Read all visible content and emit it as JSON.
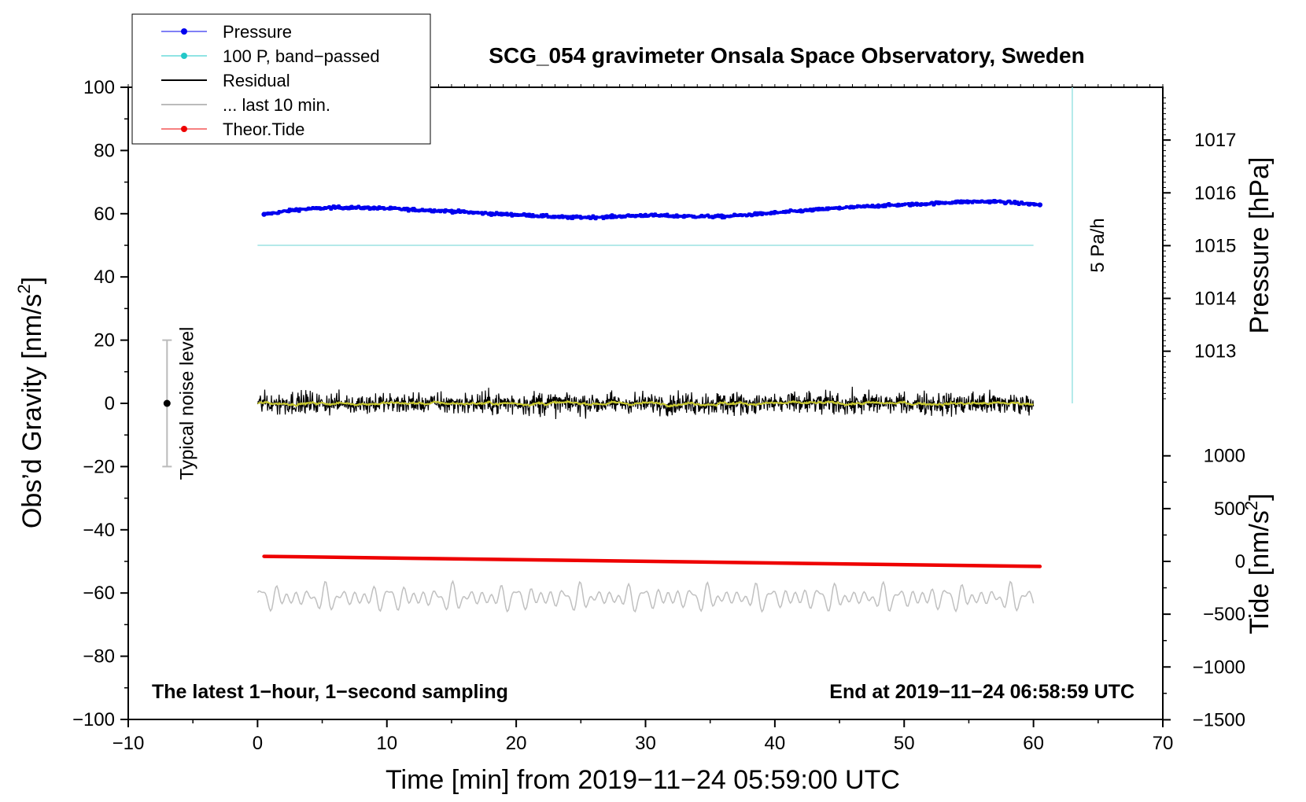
{
  "chart_data": {
    "type": "line",
    "title": "SCG_054 gravimeter Onsala Space Observatory, Sweden",
    "xlabel": "Time [min] from 2019−11−24 05:59:00 UTC",
    "ylabel_left_main": "Obs’d Gravity [nm/s",
    "ylabel_left_sup": "2",
    "ylabel_left_end": "]",
    "ylabel_right_pressure": "Pressure [hPa]",
    "ylabel_right_tide_main": "Tide [nm/s",
    "ylabel_right_tide_sup": "2",
    "ylabel_right_tide_end": "]",
    "xlim": [
      -10,
      70
    ],
    "ylim": [
      -100,
      100
    ],
    "x_ticks": [
      -10,
      0,
      10,
      20,
      30,
      40,
      50,
      60,
      70
    ],
    "x_tick_labels": [
      "−10",
      "0",
      "10",
      "20",
      "30",
      "40",
      "50",
      "60",
      "70"
    ],
    "y_ticks": [
      100,
      80,
      60,
      40,
      20,
      0,
      -20,
      -40,
      -60,
      -80,
      -100
    ],
    "y_tick_labels": [
      "100",
      "80",
      "60",
      "40",
      "20",
      "0",
      "−20",
      "−40",
      "−60",
      "−80",
      "−100"
    ],
    "pressure_axis": {
      "ticks": [
        1017,
        1016,
        1015,
        1014,
        1013
      ],
      "tick_labels": [
        "1017",
        "1016",
        "1015",
        "1014",
        "1013"
      ],
      "gravity_at_1017": 83.3,
      "gravity_per_hpa": 16.7
    },
    "tide_axis": {
      "ticks": [
        1000,
        500,
        0,
        -500,
        -1000,
        -1500
      ],
      "tick_labels": [
        "1000",
        "500",
        "0",
        "−500",
        "−1000",
        "−1500"
      ],
      "gravity_at_0": -50,
      "gravity_per_500": 16.7
    },
    "legend": {
      "position": "top-left",
      "entries": [
        {
          "label": "Pressure",
          "color": "#0000ee",
          "marker": "dot"
        },
        {
          "label": "100 P, band−passed",
          "color": "#22c8c8",
          "marker": "dot"
        },
        {
          "label": "Residual",
          "color": "#000000",
          "marker": "none"
        },
        {
          "label": "... last 10 min.",
          "color": "#bbbbbb",
          "marker": "none"
        },
        {
          "label": "Theor.Tide",
          "color": "#ee0000",
          "marker": "dot"
        }
      ]
    },
    "series": [
      {
        "name": "Pressure",
        "color": "#0000ee",
        "style": "dots",
        "x": [
          0.5,
          3,
          6,
          9,
          12,
          15,
          18,
          21,
          24,
          27,
          30,
          33,
          36,
          39,
          42,
          45,
          48,
          51,
          54,
          57,
          60.5
        ],
        "values": [
          59.8,
          61.3,
          62.0,
          61.8,
          61.3,
          60.8,
          60.0,
          59.5,
          58.8,
          59.0,
          59.5,
          59.2,
          59.1,
          60.0,
          60.9,
          61.8,
          62.5,
          63.0,
          63.7,
          63.9,
          62.8
        ]
      },
      {
        "name": "100 P, band−passed",
        "color": "#9be3e3",
        "style": "line",
        "x": [
          0,
          60
        ],
        "values": [
          50,
          50
        ]
      },
      {
        "name": "Residual",
        "color": "#000000",
        "style": "noise",
        "x": [
          0,
          60
        ],
        "values": [
          0,
          0
        ],
        "amplitude": 2.8
      },
      {
        "name": "... last 10 min.",
        "color": "#c0c0c0",
        "style": "oscillation",
        "x": [
          0,
          60
        ],
        "values": [
          -61.5,
          -61.5
        ],
        "amplitude": 3.5
      },
      {
        "name": "Theor.Tide",
        "color": "#ee0000",
        "style": "thick-line",
        "x": [
          0.5,
          60.5
        ],
        "values": [
          -48.4,
          -51.6
        ]
      }
    ],
    "smoothed_residual": {
      "color": "#c9c930"
    },
    "noise_level": {
      "label": "Typical noise level",
      "x": -7,
      "center": 0,
      "range": [
        -20,
        20
      ]
    },
    "pressure_rate": {
      "label": "5 Pa/h",
      "x": 63,
      "range": [
        0,
        100
      ],
      "color": "#9be3e3"
    },
    "notes": {
      "left": "The latest 1−hour, 1−second sampling",
      "right": "End at 2019−11−24 06:58:59 UTC"
    },
    "grid": false
  }
}
